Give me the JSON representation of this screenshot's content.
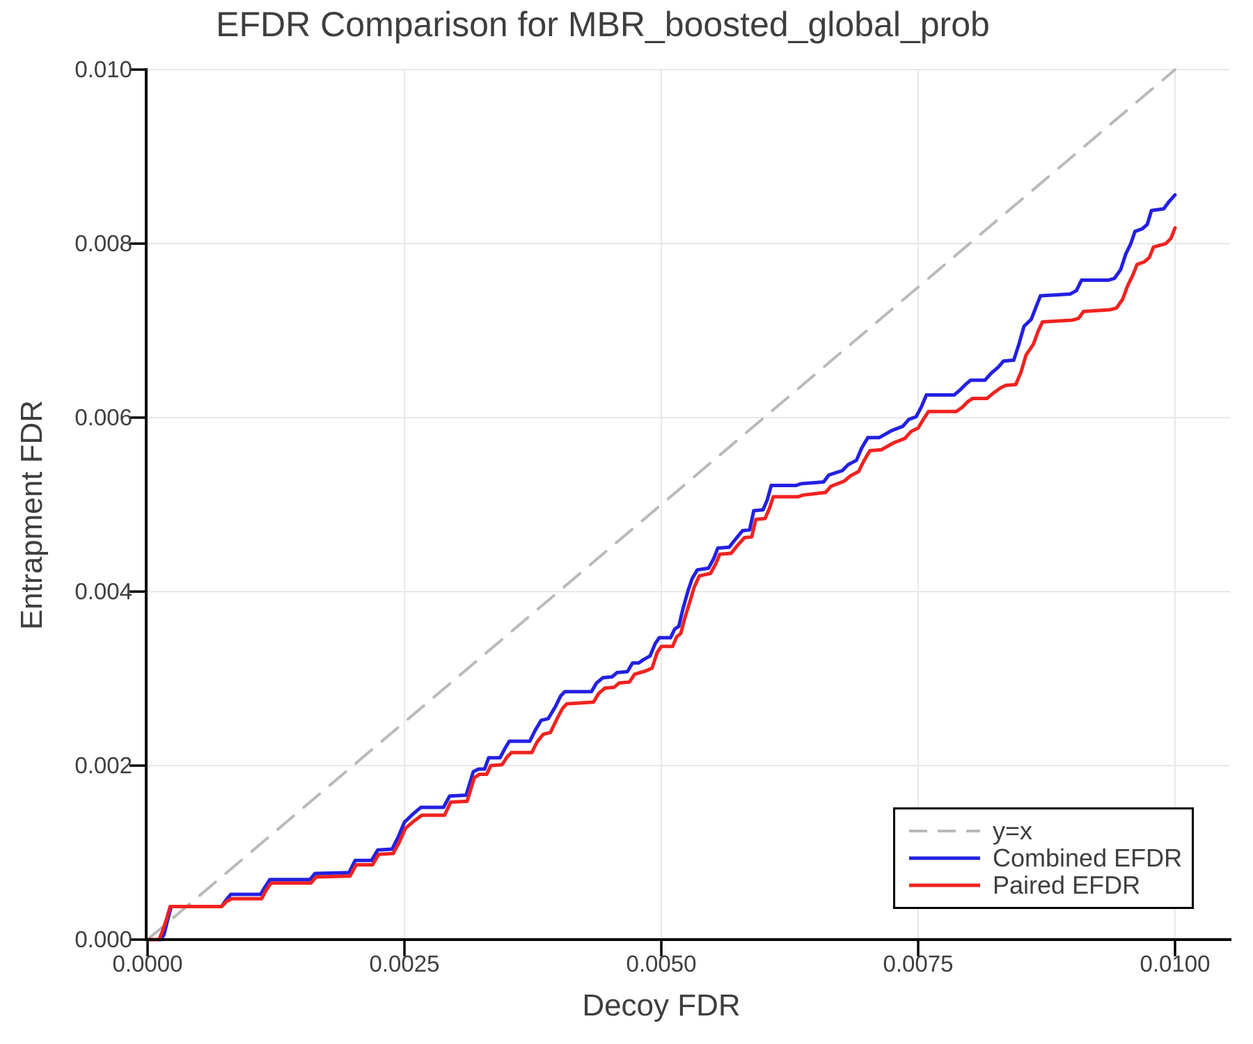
{
  "figure": {
    "title": "EFDR Comparison for MBR_boosted_global_prob"
  },
  "axes": {
    "x_label": "Decoy FDR",
    "y_label": "Entrapment FDR",
    "x_ticks": [
      {
        "value": 0.0,
        "label": "0.0000"
      },
      {
        "value": 0.0025,
        "label": "0.0025"
      },
      {
        "value": 0.005,
        "label": "0.0050"
      },
      {
        "value": 0.0075,
        "label": "0.0075"
      },
      {
        "value": 0.01,
        "label": "0.0100"
      }
    ],
    "y_ticks": [
      {
        "value": 0.0,
        "label": "0.000"
      },
      {
        "value": 0.002,
        "label": "0.002"
      },
      {
        "value": 0.004,
        "label": "0.004"
      },
      {
        "value": 0.006,
        "label": "0.006"
      },
      {
        "value": 0.008,
        "label": "0.008"
      },
      {
        "value": 0.01,
        "label": "0.010"
      }
    ]
  },
  "legend": {
    "items": [
      {
        "label": "y=x",
        "color": "#b9b9b9",
        "dash": true
      },
      {
        "label": "Combined EFDR",
        "color": "#2320e1",
        "dash": false
      },
      {
        "label": "Paired EFDR",
        "color": "#f02320",
        "dash": false
      }
    ]
  },
  "colors": {
    "grid": "#e8e8e8",
    "spine": "#000000",
    "text": "#3e3e3e",
    "background": "#ffffff"
  },
  "chart_data": {
    "type": "line",
    "title": "EFDR Comparison for MBR_boosted_global_prob",
    "xlabel": "Decoy FDR",
    "ylabel": "Entrapment FDR",
    "xlim": [
      0.0,
      0.01053
    ],
    "ylim": [
      0.0,
      0.01
    ],
    "grid": true,
    "legend_position": "lower right",
    "x_tick_values": [
      0.0,
      0.0025,
      0.005,
      0.0075,
      0.01
    ],
    "y_tick_values": [
      0.0,
      0.002,
      0.004,
      0.006,
      0.008,
      0.01
    ],
    "series": [
      {
        "name": "y=x",
        "color": "#b9b9b9",
        "style": "dashed",
        "points": [
          [
            0.0,
            0.0
          ],
          [
            0.01,
            0.01
          ]
        ]
      },
      {
        "name": "Combined EFDR",
        "color": "#2320e1",
        "style": "solid",
        "points": [
          [
            0.0,
            0.0
          ],
          [
            0.00013,
            0.0
          ],
          [
            0.00016,
            6e-05
          ],
          [
            0.00019,
            0.0002
          ],
          [
            0.00023,
            0.00038
          ],
          [
            0.00072,
            0.00038
          ],
          [
            0.00076,
            0.00045
          ],
          [
            0.00081,
            0.00052
          ],
          [
            0.0011,
            0.00052
          ],
          [
            0.00114,
            0.0006
          ],
          [
            0.00119,
            0.00069
          ],
          [
            0.00158,
            0.00069
          ],
          [
            0.00163,
            0.00076
          ],
          [
            0.00196,
            0.00077
          ],
          [
            0.00202,
            0.00091
          ],
          [
            0.00218,
            0.00091
          ],
          [
            0.00224,
            0.00103
          ],
          [
            0.00238,
            0.00104
          ],
          [
            0.00244,
            0.00118
          ],
          [
            0.0025,
            0.00135
          ],
          [
            0.00258,
            0.00144
          ],
          [
            0.00266,
            0.00152
          ],
          [
            0.00288,
            0.00152
          ],
          [
            0.00294,
            0.00165
          ],
          [
            0.0031,
            0.00166
          ],
          [
            0.00317,
            0.00193
          ],
          [
            0.00322,
            0.00196
          ],
          [
            0.00328,
            0.00196
          ],
          [
            0.00332,
            0.00209
          ],
          [
            0.00343,
            0.00209
          ],
          [
            0.00348,
            0.0022
          ],
          [
            0.00352,
            0.00228
          ],
          [
            0.00372,
            0.00228
          ],
          [
            0.00377,
            0.0024
          ],
          [
            0.00383,
            0.00252
          ],
          [
            0.0039,
            0.00254
          ],
          [
            0.00397,
            0.00268
          ],
          [
            0.00402,
            0.0028
          ],
          [
            0.00406,
            0.00285
          ],
          [
            0.00432,
            0.00285
          ],
          [
            0.00437,
            0.00295
          ],
          [
            0.00443,
            0.00301
          ],
          [
            0.00452,
            0.00302
          ],
          [
            0.00457,
            0.00307
          ],
          [
            0.00467,
            0.00308
          ],
          [
            0.00472,
            0.00318
          ],
          [
            0.00478,
            0.00318
          ],
          [
            0.00483,
            0.00322
          ],
          [
            0.00489,
            0.00326
          ],
          [
            0.00494,
            0.0034
          ],
          [
            0.00498,
            0.00347
          ],
          [
            0.00509,
            0.00347
          ],
          [
            0.00513,
            0.00357
          ],
          [
            0.00517,
            0.0036
          ],
          [
            0.00521,
            0.0038
          ],
          [
            0.00526,
            0.00401
          ],
          [
            0.0053,
            0.00415
          ],
          [
            0.00535,
            0.00425
          ],
          [
            0.00546,
            0.00427
          ],
          [
            0.00551,
            0.00438
          ],
          [
            0.00555,
            0.0045
          ],
          [
            0.00566,
            0.00451
          ],
          [
            0.00572,
            0.0046
          ],
          [
            0.00579,
            0.0047
          ],
          [
            0.00586,
            0.00471
          ],
          [
            0.0059,
            0.00493
          ],
          [
            0.00599,
            0.00494
          ],
          [
            0.00603,
            0.00505
          ],
          [
            0.00607,
            0.00522
          ],
          [
            0.00631,
            0.00522
          ],
          [
            0.00636,
            0.00524
          ],
          [
            0.00658,
            0.00526
          ],
          [
            0.00663,
            0.00534
          ],
          [
            0.00676,
            0.00539
          ],
          [
            0.00682,
            0.00546
          ],
          [
            0.0069,
            0.00551
          ],
          [
            0.00695,
            0.00565
          ],
          [
            0.00701,
            0.00577
          ],
          [
            0.00712,
            0.00577
          ],
          [
            0.00718,
            0.00581
          ],
          [
            0.00724,
            0.00585
          ],
          [
            0.00735,
            0.0059
          ],
          [
            0.00741,
            0.00598
          ],
          [
            0.00748,
            0.00601
          ],
          [
            0.00753,
            0.00612
          ],
          [
            0.00758,
            0.00626
          ],
          [
            0.00785,
            0.00626
          ],
          [
            0.00791,
            0.00632
          ],
          [
            0.00796,
            0.00638
          ],
          [
            0.00801,
            0.00643
          ],
          [
            0.00815,
            0.00643
          ],
          [
            0.00821,
            0.00651
          ],
          [
            0.00828,
            0.00658
          ],
          [
            0.00833,
            0.00665
          ],
          [
            0.00843,
            0.00666
          ],
          [
            0.00848,
            0.00684
          ],
          [
            0.00853,
            0.00705
          ],
          [
            0.0086,
            0.00713
          ],
          [
            0.00865,
            0.00728
          ],
          [
            0.00869,
            0.0074
          ],
          [
            0.00898,
            0.00742
          ],
          [
            0.00904,
            0.00746
          ],
          [
            0.00909,
            0.00758
          ],
          [
            0.00935,
            0.00758
          ],
          [
            0.00941,
            0.0076
          ],
          [
            0.00947,
            0.0077
          ],
          [
            0.00952,
            0.00788
          ],
          [
            0.00957,
            0.008
          ],
          [
            0.00961,
            0.00814
          ],
          [
            0.00968,
            0.00817
          ],
          [
            0.00973,
            0.00822
          ],
          [
            0.00977,
            0.00838
          ],
          [
            0.00989,
            0.0084
          ],
          [
            0.00994,
            0.00848
          ],
          [
            0.01,
            0.00856
          ]
        ]
      },
      {
        "name": "Paired EFDR",
        "color": "#f02320",
        "style": "solid",
        "points": [
          [
            0.0,
            0.0
          ],
          [
            0.00011,
            0.0
          ],
          [
            0.00014,
            8e-05
          ],
          [
            0.00018,
            0.00022
          ],
          [
            0.00022,
            0.00038
          ],
          [
            0.00072,
            0.00038
          ],
          [
            0.00077,
            0.00044
          ],
          [
            0.00082,
            0.00047
          ],
          [
            0.00111,
            0.00047
          ],
          [
            0.00115,
            0.00056
          ],
          [
            0.0012,
            0.00065
          ],
          [
            0.00159,
            0.00065
          ],
          [
            0.00164,
            0.00072
          ],
          [
            0.00197,
            0.00073
          ],
          [
            0.00203,
            0.00086
          ],
          [
            0.00219,
            0.00086
          ],
          [
            0.00225,
            0.00098
          ],
          [
            0.00239,
            0.00099
          ],
          [
            0.00245,
            0.00112
          ],
          [
            0.00251,
            0.00128
          ],
          [
            0.00259,
            0.00136
          ],
          [
            0.00267,
            0.00143
          ],
          [
            0.00289,
            0.00143
          ],
          [
            0.00295,
            0.00158
          ],
          [
            0.00311,
            0.00159
          ],
          [
            0.00318,
            0.00186
          ],
          [
            0.00323,
            0.0019
          ],
          [
            0.0033,
            0.0019
          ],
          [
            0.00334,
            0.002
          ],
          [
            0.00345,
            0.00201
          ],
          [
            0.0035,
            0.0021
          ],
          [
            0.00354,
            0.00215
          ],
          [
            0.00374,
            0.00215
          ],
          [
            0.00379,
            0.00227
          ],
          [
            0.00385,
            0.00236
          ],
          [
            0.00392,
            0.00238
          ],
          [
            0.00399,
            0.00255
          ],
          [
            0.00404,
            0.00266
          ],
          [
            0.00408,
            0.00271
          ],
          [
            0.00434,
            0.00273
          ],
          [
            0.00439,
            0.00283
          ],
          [
            0.00445,
            0.00289
          ],
          [
            0.00454,
            0.0029
          ],
          [
            0.00459,
            0.00295
          ],
          [
            0.00469,
            0.00296
          ],
          [
            0.00474,
            0.00305
          ],
          [
            0.00485,
            0.00309
          ],
          [
            0.00491,
            0.00312
          ],
          [
            0.00496,
            0.0033
          ],
          [
            0.005,
            0.00337
          ],
          [
            0.00511,
            0.00337
          ],
          [
            0.00515,
            0.00348
          ],
          [
            0.00519,
            0.00352
          ],
          [
            0.00523,
            0.0037
          ],
          [
            0.00528,
            0.00389
          ],
          [
            0.00532,
            0.00405
          ],
          [
            0.00537,
            0.00418
          ],
          [
            0.00548,
            0.00421
          ],
          [
            0.00553,
            0.00432
          ],
          [
            0.00557,
            0.00443
          ],
          [
            0.00568,
            0.00444
          ],
          [
            0.00574,
            0.00453
          ],
          [
            0.00581,
            0.00462
          ],
          [
            0.00588,
            0.00463
          ],
          [
            0.00592,
            0.00483
          ],
          [
            0.00601,
            0.00484
          ],
          [
            0.00605,
            0.00495
          ],
          [
            0.00609,
            0.00509
          ],
          [
            0.00633,
            0.00509
          ],
          [
            0.00638,
            0.00511
          ],
          [
            0.0066,
            0.00514
          ],
          [
            0.00665,
            0.00521
          ],
          [
            0.00678,
            0.00527
          ],
          [
            0.00684,
            0.00533
          ],
          [
            0.00692,
            0.00538
          ],
          [
            0.00697,
            0.0055
          ],
          [
            0.00703,
            0.00562
          ],
          [
            0.00714,
            0.00563
          ],
          [
            0.0072,
            0.00567
          ],
          [
            0.00726,
            0.00571
          ],
          [
            0.00737,
            0.00576
          ],
          [
            0.00743,
            0.00584
          ],
          [
            0.0075,
            0.00588
          ],
          [
            0.00755,
            0.00598
          ],
          [
            0.0076,
            0.00607
          ],
          [
            0.00787,
            0.00607
          ],
          [
            0.00793,
            0.00612
          ],
          [
            0.00798,
            0.00618
          ],
          [
            0.00803,
            0.00622
          ],
          [
            0.00817,
            0.00622
          ],
          [
            0.00823,
            0.00628
          ],
          [
            0.0083,
            0.00634
          ],
          [
            0.00835,
            0.00637
          ],
          [
            0.00845,
            0.00638
          ],
          [
            0.0085,
            0.00652
          ],
          [
            0.00855,
            0.00672
          ],
          [
            0.00862,
            0.00684
          ],
          [
            0.00867,
            0.007
          ],
          [
            0.00871,
            0.0071
          ],
          [
            0.009,
            0.00712
          ],
          [
            0.00906,
            0.00714
          ],
          [
            0.00911,
            0.00722
          ],
          [
            0.00937,
            0.00724
          ],
          [
            0.00943,
            0.00726
          ],
          [
            0.00949,
            0.00736
          ],
          [
            0.00954,
            0.00752
          ],
          [
            0.00959,
            0.00764
          ],
          [
            0.00963,
            0.00776
          ],
          [
            0.0097,
            0.00779
          ],
          [
            0.00975,
            0.00784
          ],
          [
            0.00979,
            0.00796
          ],
          [
            0.00991,
            0.008
          ],
          [
            0.00996,
            0.00806
          ],
          [
            0.01,
            0.00818
          ]
        ]
      }
    ]
  }
}
